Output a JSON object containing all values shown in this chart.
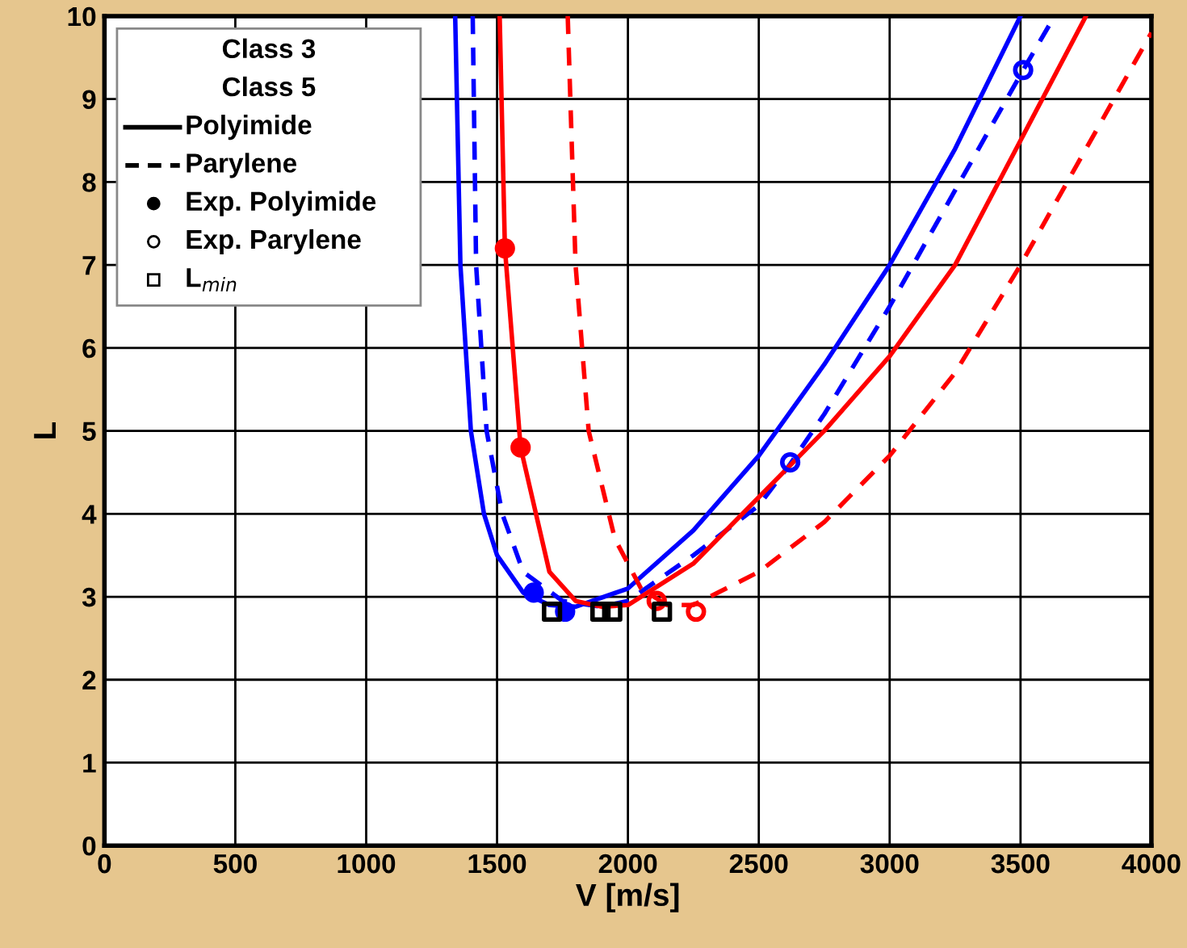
{
  "chart_data": {
    "type": "line",
    "xlabel": "V [m/s]",
    "ylabel": "L",
    "xlim": [
      0,
      4000
    ],
    "xticks": [
      0,
      500,
      1000,
      1500,
      2000,
      2500,
      3000,
      3500,
      4000
    ],
    "ylim": [
      0,
      10
    ],
    "yticks": [
      0,
      1,
      2,
      3,
      4,
      5,
      6,
      7,
      8,
      9,
      10
    ],
    "grid": true,
    "marker": "none",
    "annotations": [
      "Class 3",
      "Class 5",
      "Polyimide",
      "Parylene",
      "Exp. Polyimide",
      "Exp. Parylene",
      "L$_{min}$"
    ],
    "series": [
      {
        "color": "#0000ff",
        "line_style": "solid",
        "x": [
          1340,
          1360,
          1400,
          1450,
          1500,
          1600,
          1700,
          1800,
          2000,
          2250,
          2500,
          2750,
          3000,
          3250,
          3500
        ],
        "values": [
          10,
          7,
          5,
          4,
          3.5,
          3.05,
          2.9,
          2.88,
          3.1,
          3.8,
          4.7,
          5.8,
          7.0,
          8.4,
          10
        ]
      },
      {
        "color": "#0000ff",
        "line_style": "dashed",
        "x": [
          1407,
          1420,
          1460,
          1520,
          1600,
          1750,
          1900,
          2000,
          2250,
          2500,
          2620,
          2750,
          3000,
          3250,
          3510,
          3630
        ],
        "values": [
          10,
          7,
          5,
          4,
          3.3,
          2.95,
          2.88,
          2.95,
          3.5,
          4.1,
          4.6,
          5.2,
          6.5,
          7.9,
          9.35,
          10
        ]
      },
      {
        "color": "#ff0000",
        "line_style": "solid",
        "x": [
          1510,
          1530,
          1590,
          1700,
          1800,
          1900,
          2000,
          2250,
          2500,
          2750,
          3000,
          3250,
          3500,
          3750
        ],
        "values": [
          10,
          7.2,
          4.8,
          3.3,
          2.95,
          2.88,
          2.9,
          3.4,
          4.2,
          5.0,
          5.9,
          7.0,
          8.5,
          10
        ]
      },
      {
        "color": "#ff0000",
        "line_style": "dashed",
        "x": [
          1770,
          1800,
          1850,
          1950,
          2050,
          2150,
          2250,
          2500,
          2750,
          3000,
          3250,
          3500,
          3750,
          4000
        ],
        "values": [
          10,
          7,
          5,
          3.7,
          3.1,
          2.9,
          2.9,
          3.3,
          3.9,
          4.7,
          5.7,
          7.0,
          8.4,
          9.8
        ]
      },
      {
        "type": "scatter",
        "marker": "circle",
        "color": "#0000ff",
        "x": [
          1640,
          1760
        ],
        "values": [
          3.05,
          2.82
        ]
      },
      {
        "type": "scatter",
        "marker": "circle",
        "color": "#ff0000",
        "x": [
          1530,
          1590
        ],
        "values": [
          7.2,
          4.8
        ]
      },
      {
        "type": "scatter",
        "marker": "circle",
        "color": "#ff0000",
        "x": [
          2110,
          2260
        ],
        "values": [
          2.95,
          2.82
        ]
      },
      {
        "type": "scatter",
        "marker": "circle",
        "color": "#0000ff",
        "x": [
          2620,
          3510
        ],
        "values": [
          4.62,
          9.35
        ]
      },
      {
        "type": "scatter",
        "marker": "square",
        "color": "#000000",
        "x": [
          1710,
          1895,
          1940,
          2130
        ],
        "values": [
          2.82,
          2.82,
          2.82,
          2.82
        ]
      }
    ]
  }
}
